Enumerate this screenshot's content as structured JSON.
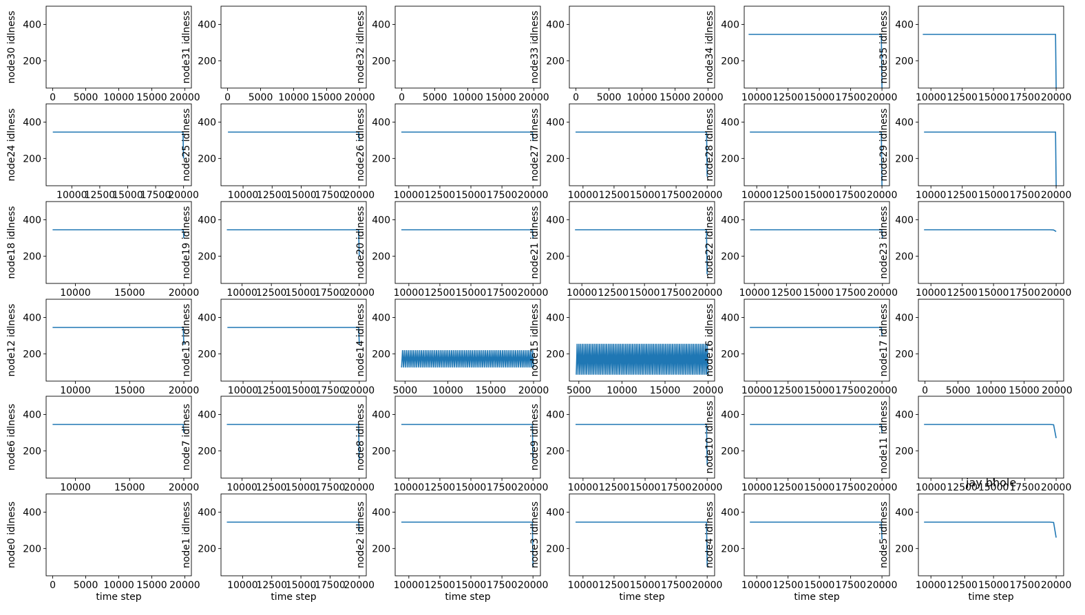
{
  "figure": {
    "annotation": "jay bhole",
    "line_color": "#1f77b4"
  },
  "chart_data": {
    "type": "line",
    "grid": false,
    "layout": "6 rows x 6 columns of small line plots",
    "shared_xlabel": "time step",
    "panels": [
      {
        "ylabel": "node30 idlness",
        "xlabel": "",
        "xlim": [
          -1000,
          21000
        ],
        "xticks": [
          0,
          5000,
          10000,
          15000,
          20000
        ],
        "ylim": [
          50,
          500
        ],
        "yticks": [
          200,
          400
        ],
        "x": [],
        "y": []
      },
      {
        "ylabel": "node31 idlness",
        "xlabel": "",
        "xlim": [
          -1000,
          21000
        ],
        "xticks": [
          0,
          5000,
          10000,
          15000,
          20000
        ],
        "ylim": [
          50,
          500
        ],
        "yticks": [
          200,
          400
        ],
        "x": [],
        "y": []
      },
      {
        "ylabel": "node32 idlness",
        "xlabel": "",
        "xlim": [
          -1000,
          21000
        ],
        "xticks": [
          0,
          5000,
          10000,
          15000,
          20000
        ],
        "ylim": [
          50,
          500
        ],
        "yticks": [
          200,
          400
        ],
        "x": [],
        "y": []
      },
      {
        "ylabel": "node33 idlness",
        "xlabel": "",
        "xlim": [
          -1000,
          21000
        ],
        "xticks": [
          0,
          5000,
          10000,
          15000,
          20000
        ],
        "ylim": [
          50,
          500
        ],
        "yticks": [
          200,
          400
        ],
        "x": [],
        "y": []
      },
      {
        "ylabel": "node34 idlness",
        "xlabel": "",
        "xlim": [
          9000,
          20600
        ],
        "xticks": [
          10000,
          12500,
          15000,
          17500,
          20000
        ],
        "ylim": [
          50,
          500
        ],
        "yticks": [
          200,
          400
        ],
        "x": [
          9350,
          19950,
          20000
        ],
        "y": [
          345,
          345,
          50
        ]
      },
      {
        "ylabel": "node35 idlness",
        "xlabel": "",
        "xlim": [
          9000,
          20600
        ],
        "xticks": [
          10000,
          12500,
          15000,
          17500,
          20000
        ],
        "ylim": [
          50,
          500
        ],
        "yticks": [
          200,
          400
        ],
        "x": [
          9350,
          19950,
          20000
        ],
        "y": [
          345,
          345,
          50
        ]
      },
      {
        "ylabel": "node24 idlness",
        "xlabel": "",
        "xlim": [
          7700,
          20700
        ],
        "xticks": [
          10000,
          12500,
          15000,
          17500,
          20000
        ],
        "ylim": [
          50,
          500
        ],
        "yticks": [
          200,
          400
        ],
        "x": [
          8300,
          19950,
          20000
        ],
        "y": [
          345,
          345,
          200
        ]
      },
      {
        "ylabel": "node25 idlness",
        "xlabel": "",
        "xlim": [
          8100,
          20600
        ],
        "xticks": [
          10000,
          12500,
          15000,
          17500,
          20000
        ],
        "ylim": [
          50,
          500
        ],
        "yticks": [
          200,
          400
        ],
        "x": [
          8700,
          19950,
          20000
        ],
        "y": [
          345,
          345,
          300
        ]
      },
      {
        "ylabel": "node26 idlness",
        "xlabel": "",
        "xlim": [
          8900,
          20600
        ],
        "xticks": [
          10000,
          12500,
          15000,
          17500,
          20000
        ],
        "ylim": [
          50,
          500
        ],
        "yticks": [
          200,
          400
        ],
        "x": [
          9400,
          19950,
          20000
        ],
        "y": [
          345,
          345,
          300
        ]
      },
      {
        "ylabel": "node27 idlness",
        "xlabel": "",
        "xlim": [
          8900,
          20600
        ],
        "xticks": [
          10000,
          12500,
          15000,
          17500,
          20000
        ],
        "ylim": [
          50,
          500
        ],
        "yticks": [
          200,
          400
        ],
        "x": [
          9400,
          19950,
          20000
        ],
        "y": [
          345,
          345,
          100
        ]
      },
      {
        "ylabel": "node28 idlness",
        "xlabel": "",
        "xlim": [
          9000,
          20600
        ],
        "xticks": [
          10000,
          12500,
          15000,
          17500,
          20000
        ],
        "ylim": [
          50,
          500
        ],
        "yticks": [
          200,
          400
        ],
        "x": [
          9450,
          19950,
          20000
        ],
        "y": [
          345,
          345,
          50
        ]
      },
      {
        "ylabel": "node29 idlness",
        "xlabel": "",
        "xlim": [
          9000,
          20600
        ],
        "xticks": [
          10000,
          12500,
          15000,
          17500,
          20000
        ],
        "ylim": [
          50,
          500
        ],
        "yticks": [
          200,
          400
        ],
        "x": [
          9450,
          19950,
          20000
        ],
        "y": [
          345,
          345,
          50
        ]
      },
      {
        "ylabel": "node18 idlness",
        "xlabel": "",
        "xlim": [
          7300,
          20700
        ],
        "xticks": [
          10000,
          15000,
          20000
        ],
        "ylim": [
          50,
          500
        ],
        "yticks": [
          200,
          400
        ],
        "x": [
          7900,
          19950,
          20000
        ],
        "y": [
          345,
          345,
          300
        ]
      },
      {
        "ylabel": "node19 idlness",
        "xlabel": "",
        "xlim": [
          8200,
          20600
        ],
        "xticks": [
          10000,
          12500,
          15000,
          17500,
          20000
        ],
        "ylim": [
          50,
          500
        ],
        "yticks": [
          200,
          400
        ],
        "x": [
          8700,
          19950,
          20000
        ],
        "y": [
          345,
          345,
          200
        ]
      },
      {
        "ylabel": "node20 idlness",
        "xlabel": "",
        "xlim": [
          8900,
          20600
        ],
        "xticks": [
          10000,
          12500,
          15000,
          17500,
          20000
        ],
        "ylim": [
          50,
          500
        ],
        "yticks": [
          200,
          400
        ],
        "x": [
          9400,
          19950,
          20000
        ],
        "y": [
          345,
          345,
          300
        ]
      },
      {
        "ylabel": "node21 idlness",
        "xlabel": "",
        "xlim": [
          9000,
          20600
        ],
        "xticks": [
          10000,
          12500,
          15000,
          17500,
          20000
        ],
        "ylim": [
          50,
          500
        ],
        "yticks": [
          200,
          400
        ],
        "x": [
          9450,
          19950,
          20000
        ],
        "y": [
          345,
          345,
          100
        ]
      },
      {
        "ylabel": "node22 idlness",
        "xlabel": "",
        "xlim": [
          9200,
          20550
        ],
        "xticks": [
          10000,
          12500,
          15000,
          17500,
          20000
        ],
        "ylim": [
          50,
          500
        ],
        "yticks": [
          200,
          400
        ],
        "x": [
          9650,
          19950,
          20000
        ],
        "y": [
          345,
          345,
          300
        ]
      },
      {
        "ylabel": "node23 idlness",
        "xlabel": "",
        "xlim": [
          9000,
          20600
        ],
        "xticks": [
          10000,
          12500,
          15000,
          17500,
          20000
        ],
        "ylim": [
          50,
          500
        ],
        "yticks": [
          200,
          400
        ],
        "x": [
          9450,
          19500,
          19800,
          20000
        ],
        "y": [
          345,
          345,
          344,
          335
        ]
      },
      {
        "ylabel": "node12 idlness",
        "xlabel": "",
        "xlim": [
          7300,
          20700
        ],
        "xticks": [
          10000,
          15000,
          20000
        ],
        "ylim": [
          50,
          500
        ],
        "yticks": [
          200,
          400
        ],
        "x": [
          7900,
          19950,
          20000
        ],
        "y": [
          345,
          345,
          250
        ]
      },
      {
        "ylabel": "node13 idlness",
        "xlabel": "",
        "xlim": [
          8100,
          20600
        ],
        "xticks": [
          10000,
          12500,
          15000,
          17500,
          20000
        ],
        "ylim": [
          50,
          500
        ],
        "yticks": [
          200,
          400
        ],
        "x": [
          8650,
          19950,
          20000
        ],
        "y": [
          345,
          345,
          250
        ]
      },
      {
        "ylabel": "node14 idlness",
        "xlabel": "",
        "xlim": [
          3850,
          20800
        ],
        "xticks": [
          5000,
          10000,
          15000,
          20000
        ],
        "ylim": [
          50,
          500
        ],
        "yticks": [
          200,
          400
        ],
        "x": [
          4600,
          20000
        ],
        "y": [
          125,
          220
        ],
        "oscillation": {
          "cycles": 70,
          "low": 125,
          "high": 220
        }
      },
      {
        "ylabel": "node15 idlness",
        "xlabel": "",
        "xlim": [
          3900,
          20750
        ],
        "xticks": [
          5000,
          10000,
          15000,
          20000
        ],
        "ylim": [
          50,
          500
        ],
        "yticks": [
          200,
          400
        ],
        "x": [
          4700,
          20000
        ],
        "y": [
          85,
          255
        ],
        "oscillation": {
          "cycles": 76,
          "low": 85,
          "high": 255
        }
      },
      {
        "ylabel": "node16 idlness",
        "xlabel": "",
        "xlim": [
          9000,
          20600
        ],
        "xticks": [
          10000,
          12500,
          15000,
          17500,
          20000
        ],
        "ylim": [
          50,
          500
        ],
        "yticks": [
          200,
          400
        ],
        "x": [
          9450,
          19950,
          20000
        ],
        "y": [
          345,
          345,
          300
        ]
      },
      {
        "ylabel": "node17 idlness",
        "xlabel": "",
        "xlim": [
          -1000,
          21000
        ],
        "xticks": [
          0,
          5000,
          10000,
          15000,
          20000
        ],
        "ylim": [
          50,
          500
        ],
        "yticks": [
          200,
          400
        ],
        "x": [],
        "y": []
      },
      {
        "ylabel": "node6 idlness",
        "xlabel": "",
        "xlim": [
          7300,
          20700
        ],
        "xticks": [
          10000,
          15000,
          20000
        ],
        "ylim": [
          50,
          500
        ],
        "yticks": [
          200,
          400
        ],
        "x": [
          7900,
          19950,
          20000
        ],
        "y": [
          345,
          345,
          300
        ]
      },
      {
        "ylabel": "node7 idlness",
        "xlabel": "",
        "xlim": [
          8200,
          20600
        ],
        "xticks": [
          10000,
          12500,
          15000,
          17500,
          20000
        ],
        "ylim": [
          50,
          500
        ],
        "yticks": [
          200,
          400
        ],
        "x": [
          8700,
          19950,
          20000
        ],
        "y": [
          345,
          345,
          150
        ]
      },
      {
        "ylabel": "node8 idlness",
        "xlabel": "",
        "xlim": [
          8900,
          20600
        ],
        "xticks": [
          10000,
          12500,
          15000,
          17500,
          20000
        ],
        "ylim": [
          50,
          500
        ],
        "yticks": [
          200,
          400
        ],
        "x": [
          9400,
          19950,
          20000
        ],
        "y": [
          345,
          345,
          150
        ]
      },
      {
        "ylabel": "node9 idlness",
        "xlabel": "",
        "xlim": [
          8900,
          20600
        ],
        "xticks": [
          10000,
          12500,
          15000,
          17500,
          20000
        ],
        "ylim": [
          50,
          500
        ],
        "yticks": [
          200,
          400
        ],
        "x": [
          9400,
          19950,
          20000
        ],
        "y": [
          345,
          345,
          120
        ]
      },
      {
        "ylabel": "node10 idlness",
        "xlabel": "",
        "xlim": [
          9000,
          20600
        ],
        "xticks": [
          10000,
          12500,
          15000,
          17500,
          20000
        ],
        "ylim": [
          50,
          500
        ],
        "yticks": [
          200,
          400
        ],
        "x": [
          9450,
          19950,
          20000
        ],
        "y": [
          345,
          345,
          300
        ]
      },
      {
        "ylabel": "node11 idlness",
        "xlabel": "",
        "xlim": [
          9000,
          20600
        ],
        "xticks": [
          10000,
          12500,
          15000,
          17500,
          20000
        ],
        "ylim": [
          50,
          500
        ],
        "yticks": [
          200,
          400
        ],
        "x": [
          9450,
          19500,
          19800,
          20000
        ],
        "y": [
          345,
          345,
          343,
          270
        ]
      },
      {
        "ylabel": "node0 idlness",
        "xlabel": "time step",
        "xlim": [
          -1000,
          21000
        ],
        "xticks": [
          0,
          5000,
          10000,
          15000,
          20000
        ],
        "ylim": [
          50,
          500
        ],
        "yticks": [
          200,
          400
        ],
        "x": [],
        "y": []
      },
      {
        "ylabel": "node1 idlness",
        "xlabel": "time step",
        "xlim": [
          8150,
          20600
        ],
        "xticks": [
          10000,
          12500,
          15000,
          17500,
          20000
        ],
        "ylim": [
          50,
          500
        ],
        "yticks": [
          200,
          400
        ],
        "x": [
          8650,
          19950,
          20000
        ],
        "y": [
          345,
          345,
          300
        ]
      },
      {
        "ylabel": "node2 idlness",
        "xlabel": "time step",
        "xlim": [
          8900,
          20600
        ],
        "xticks": [
          10000,
          12500,
          15000,
          17500,
          20000
        ],
        "ylim": [
          50,
          500
        ],
        "yticks": [
          200,
          400
        ],
        "x": [
          9400,
          19950,
          20000
        ],
        "y": [
          345,
          345,
          100
        ]
      },
      {
        "ylabel": "node3 idlness",
        "xlabel": "time step",
        "xlim": [
          8900,
          20600
        ],
        "xticks": [
          10000,
          12500,
          15000,
          17500,
          20000
        ],
        "ylim": [
          50,
          500
        ],
        "yticks": [
          200,
          400
        ],
        "x": [
          9400,
          19950,
          20000
        ],
        "y": [
          345,
          345,
          100
        ]
      },
      {
        "ylabel": "node4 idlness",
        "xlabel": "time step",
        "xlim": [
          9000,
          20600
        ],
        "xticks": [
          10000,
          12500,
          15000,
          17500,
          20000
        ],
        "ylim": [
          50,
          500
        ],
        "yticks": [
          200,
          400
        ],
        "x": [
          9450,
          19950,
          20000
        ],
        "y": [
          345,
          345,
          250
        ]
      },
      {
        "ylabel": "node5 idlness",
        "xlabel": "time step",
        "xlim": [
          9000,
          20600
        ],
        "xticks": [
          10000,
          12500,
          15000,
          17500,
          20000
        ],
        "ylim": [
          50,
          500
        ],
        "yticks": [
          200,
          400
        ],
        "x": [
          9450,
          19500,
          19800,
          20000
        ],
        "y": [
          345,
          345,
          343,
          260
        ]
      }
    ]
  }
}
